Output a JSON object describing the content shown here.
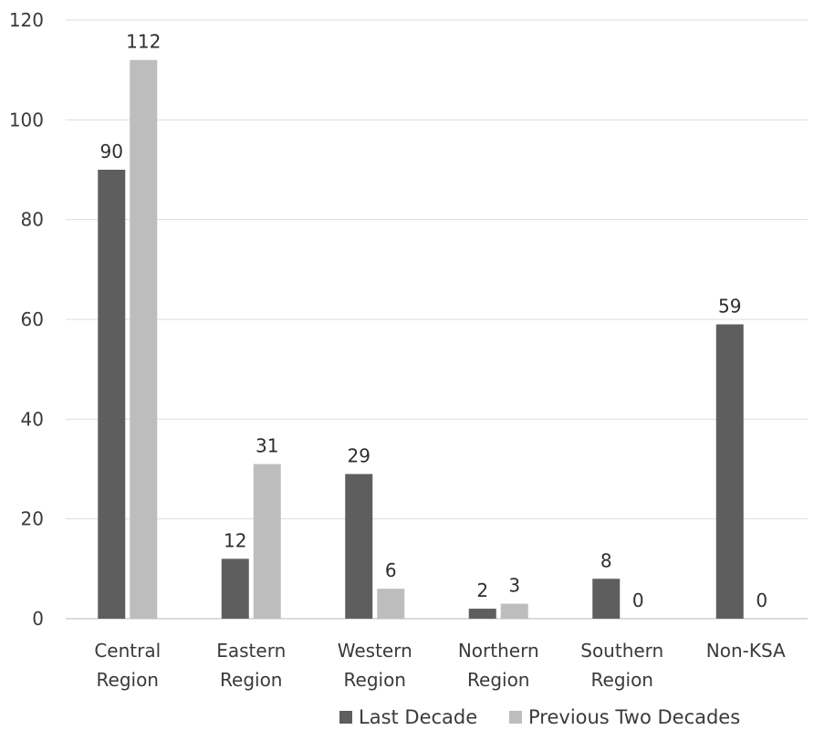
{
  "chart_data": {
    "type": "bar",
    "categories": [
      [
        "Central",
        "Region"
      ],
      [
        "Eastern",
        "Region"
      ],
      [
        "Western",
        "Region"
      ],
      [
        "Northern",
        "Region"
      ],
      [
        "Southern",
        "Region"
      ],
      [
        "Non-KSA"
      ]
    ],
    "series": [
      {
        "name": "Last Decade",
        "values": [
          90,
          12,
          29,
          2,
          8,
          59
        ],
        "color": "#5e5e5e",
        "labels": [
          "90",
          "12",
          "29",
          "2",
          "8",
          "59"
        ]
      },
      {
        "name": "Previous Two Decades",
        "values": [
          112,
          31,
          6,
          3,
          0,
          0
        ],
        "color": "#bdbdbd",
        "labels": [
          "112",
          "31",
          "6",
          "3",
          "0",
          "0"
        ]
      }
    ],
    "yticks": [
      "0",
      "20",
      "40",
      "60",
      "80",
      "100",
      "120"
    ],
    "ylim": [
      0,
      120
    ],
    "grid": true,
    "legend_position": "bottom"
  }
}
